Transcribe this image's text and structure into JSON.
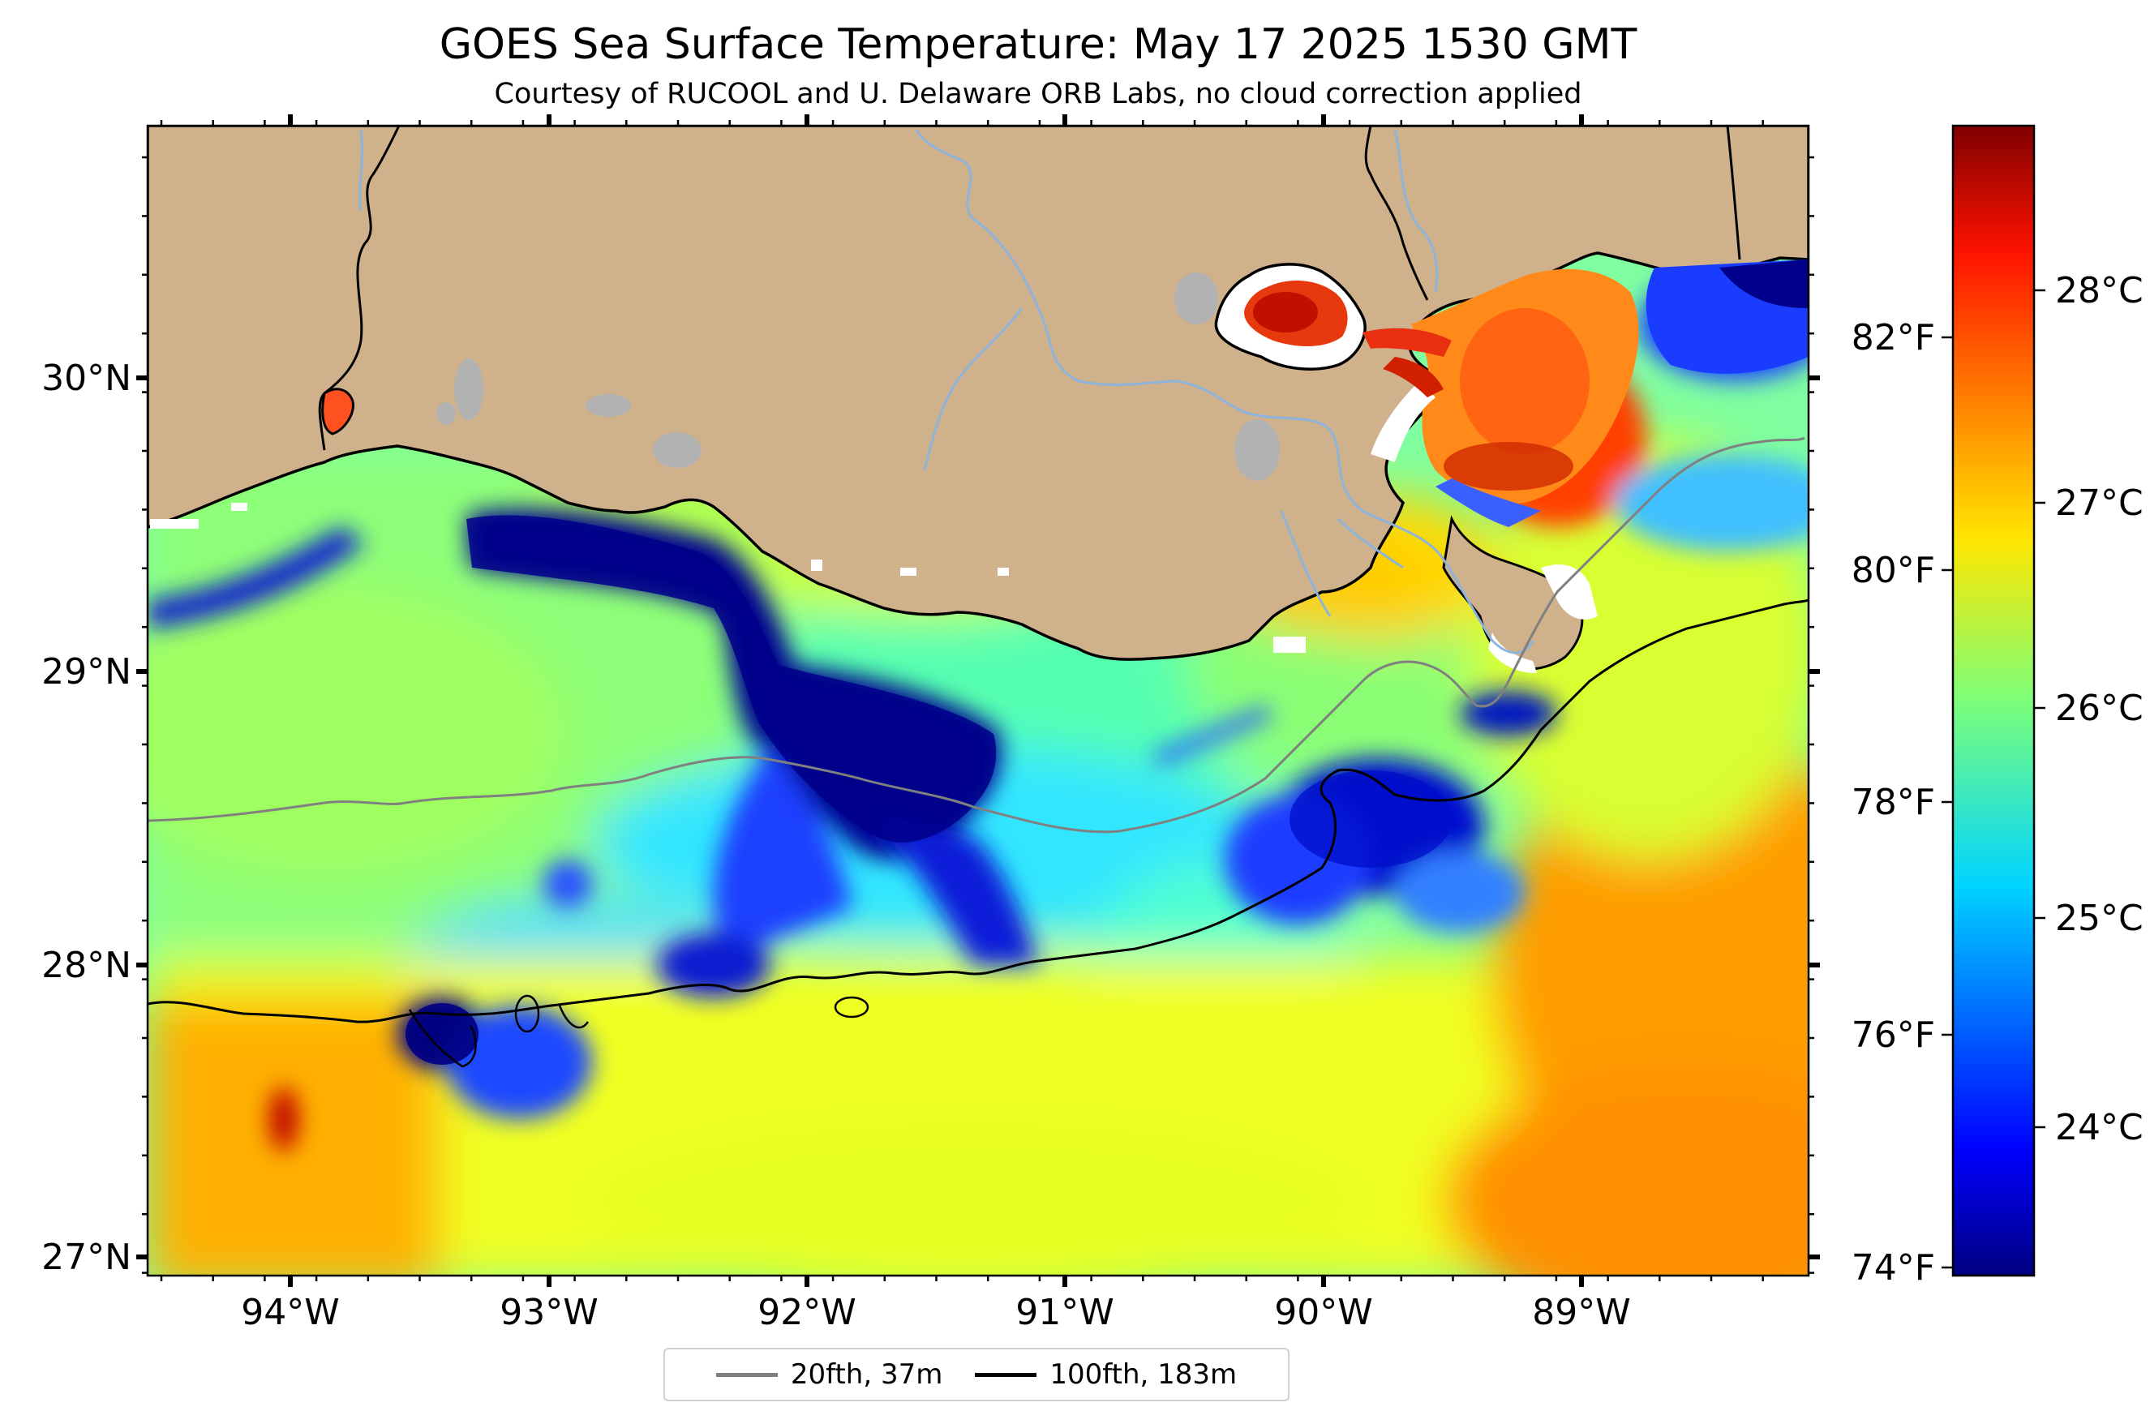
{
  "title": "GOES Sea Surface Temperature: May 17 2025 1530 GMT",
  "subtitle": "Courtesy of RUCOOL and U. Delaware ORB Labs, no cloud correction applied",
  "map": {
    "lon_ticks": [
      "94°W",
      "93°W",
      "92°W",
      "91°W",
      "90°W",
      "89°W"
    ],
    "lat_ticks": [
      "30°N",
      "29°N",
      "28°N",
      "27°N"
    ],
    "land_color": "#cfb18c",
    "lake_color": "#b2b2b2",
    "river_color": "#8fb4dc",
    "coast_color": "#000000",
    "cloud_color": "#ffffff"
  },
  "colorbar": {
    "colormap": "jet",
    "celsius_ticks": [
      "28°C",
      "27°C",
      "26°C",
      "25°C",
      "24°C"
    ],
    "fahrenheit_ticks": [
      "82°F",
      "80°F",
      "78°F",
      "76°F",
      "74°F"
    ]
  },
  "legend": {
    "items": [
      {
        "label": "20fth, 37m",
        "color": "#808080"
      },
      {
        "label": "100fth, 183m",
        "color": "#000000"
      }
    ]
  }
}
